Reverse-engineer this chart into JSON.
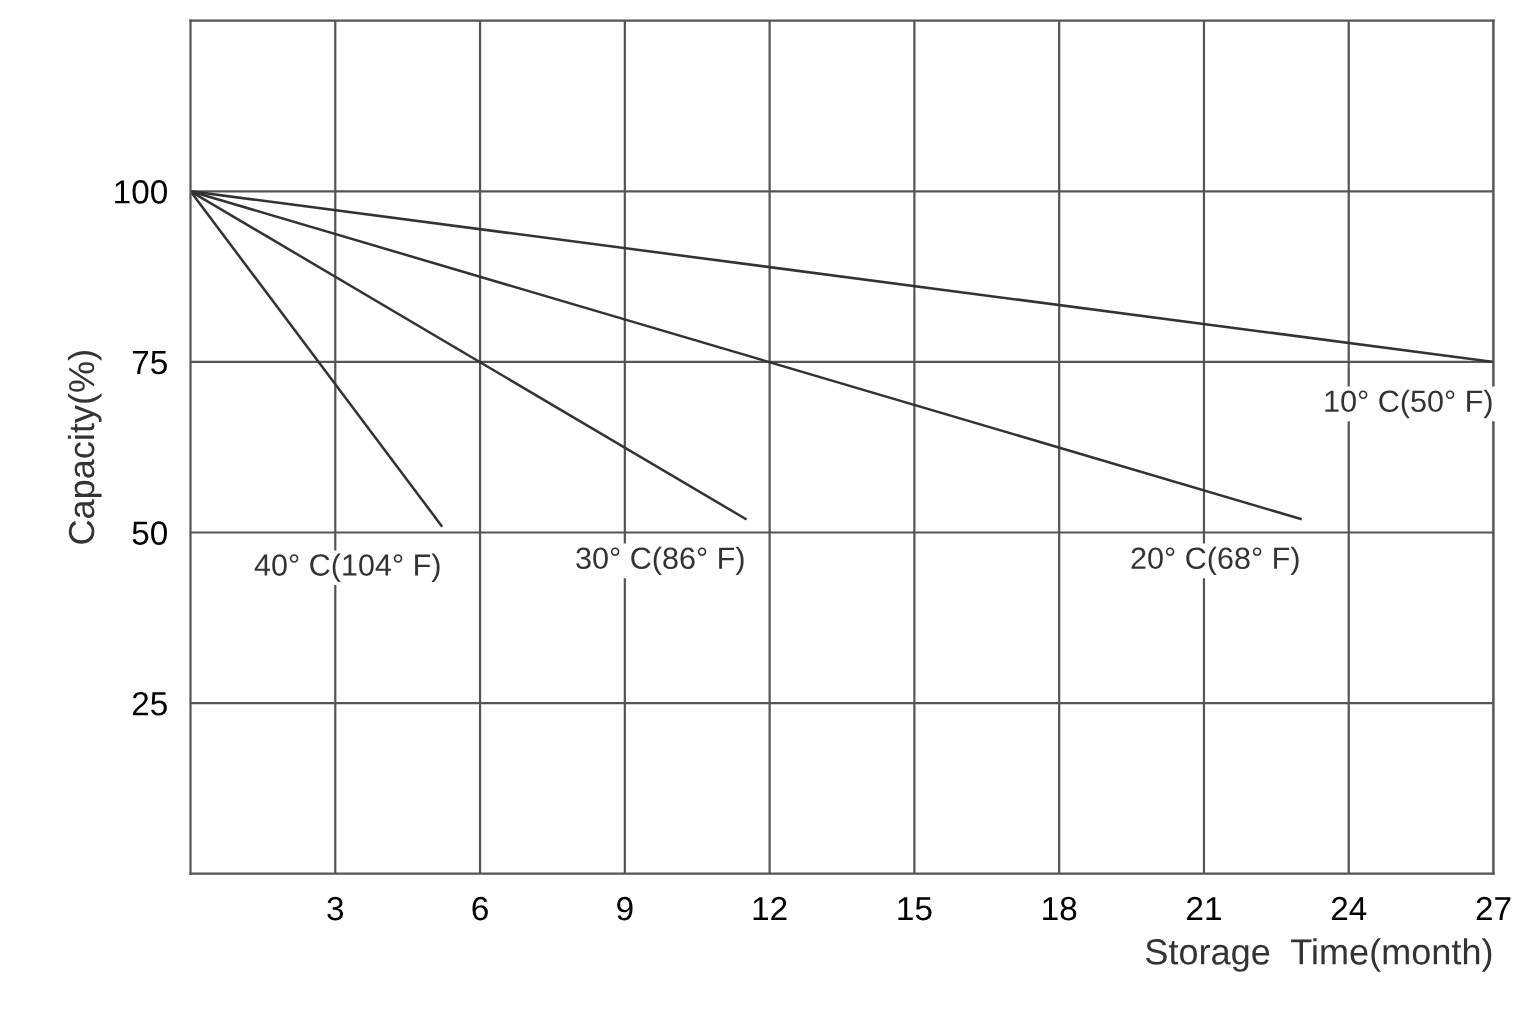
{
  "chart_data": {
    "type": "line",
    "xlabel": "Storage  Time(month)",
    "ylabel": "Capacity(%)",
    "xlim": [
      0,
      27
    ],
    "ylim": [
      0,
      125
    ],
    "xticks": [
      3,
      6,
      9,
      12,
      15,
      18,
      21,
      24,
      27
    ],
    "yticks": [
      25,
      50,
      75,
      100
    ],
    "grid": true,
    "marker": "none",
    "line_style": "solid",
    "series": [
      {
        "name": "10° C(50° F)",
        "color": "#333333",
        "x": [
          0,
          27
        ],
        "values": [
          100,
          75
        ]
      },
      {
        "name": "20° C(68° F)",
        "color": "#333333",
        "x": [
          0,
          23
        ],
        "values": [
          100,
          52
        ]
      },
      {
        "name": "30° C(86° F)",
        "color": "#333333",
        "x": [
          0,
          11.5
        ],
        "values": [
          100,
          52
        ]
      },
      {
        "name": "40° C(104° F)",
        "color": "#333333",
        "x": [
          0,
          5.2
        ],
        "values": [
          100,
          51
        ]
      }
    ]
  }
}
